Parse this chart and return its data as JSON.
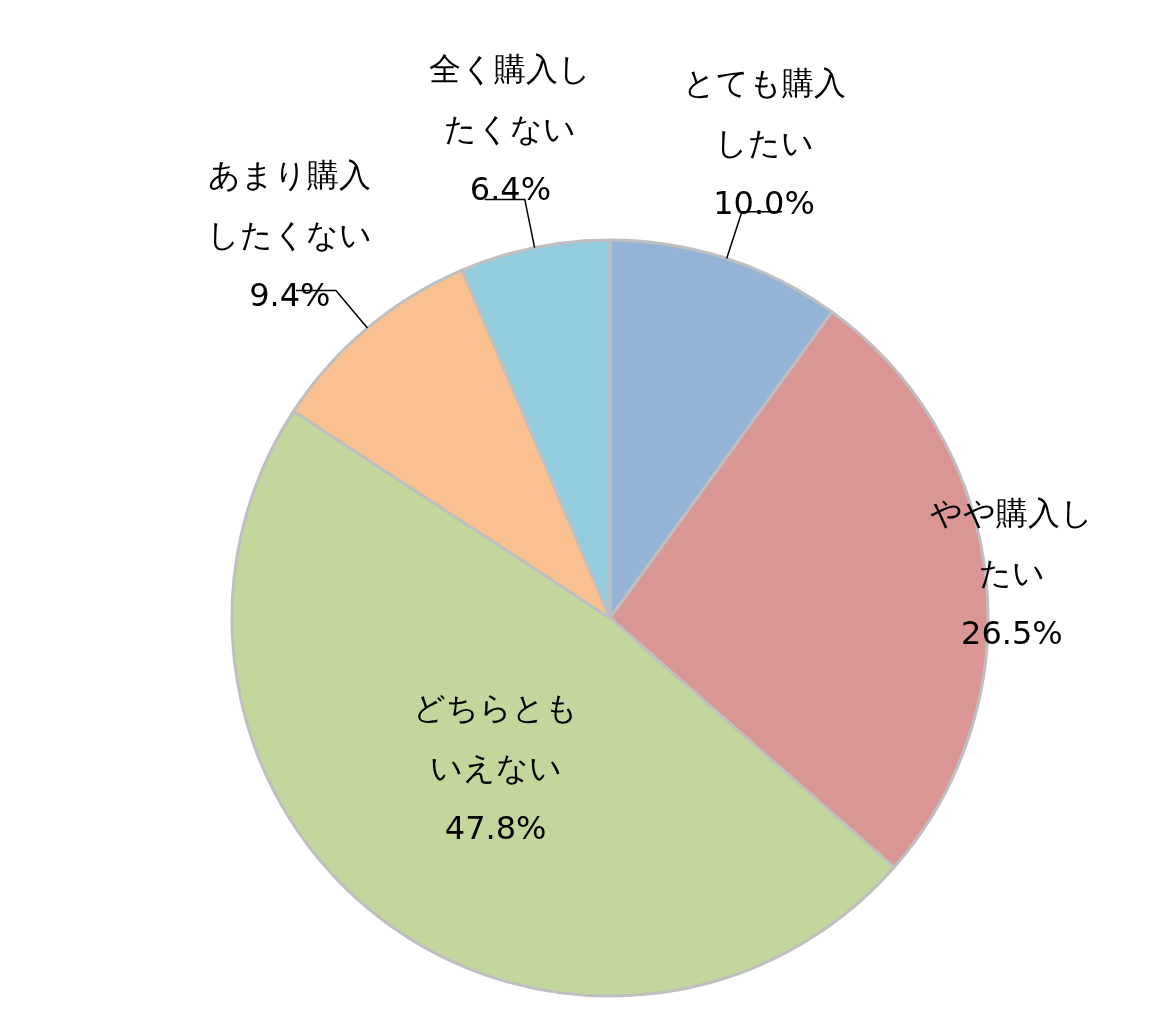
{
  "chart_data": {
    "type": "pie",
    "categories": [
      "とても購入したい",
      "やや購入したい",
      "どちらともいえない",
      "あまり購入したくない",
      "全く購入したくない"
    ],
    "values": [
      10.0,
      26.5,
      47.8,
      9.4,
      6.4
    ],
    "value_labels": [
      "10.0%",
      "26.5%",
      "47.8%",
      "9.4%",
      "6.4%"
    ],
    "colors": [
      "#95b3d7",
      "#d99694",
      "#c3d69b",
      "#fac090",
      "#93cddd"
    ]
  }
}
